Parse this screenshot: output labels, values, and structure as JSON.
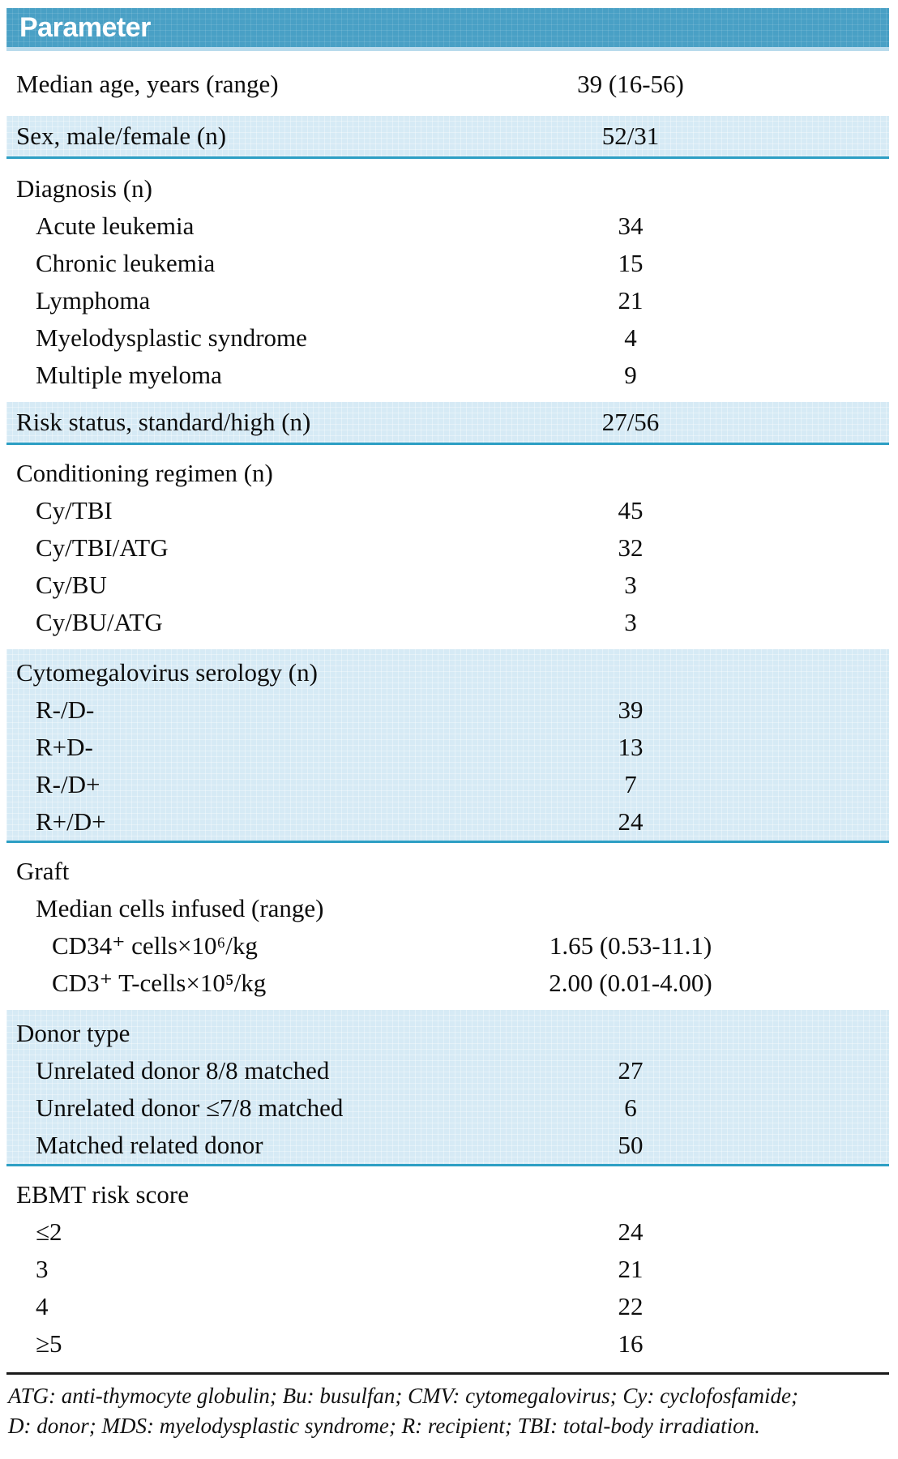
{
  "table": {
    "header": "Parameter",
    "rows": [
      {
        "label": "Median age, years (range)",
        "value": "39 (16-56)"
      },
      {
        "label": "Sex, male/female (n)",
        "value": "52/31"
      },
      {
        "label": "Diagnosis (n)",
        "value": ""
      },
      {
        "label": "Acute leukemia",
        "value": "34"
      },
      {
        "label": "Chronic leukemia",
        "value": "15"
      },
      {
        "label": "Lymphoma",
        "value": "21"
      },
      {
        "label": "Myelodysplastic syndrome",
        "value": "4"
      },
      {
        "label": "Multiple myeloma",
        "value": "9"
      },
      {
        "label": "Risk status, standard/high (n)",
        "value": "27/56"
      },
      {
        "label": "Conditioning regimen (n)",
        "value": ""
      },
      {
        "label": "Cy/TBI",
        "value": "45"
      },
      {
        "label": "Cy/TBI/ATG",
        "value": "32"
      },
      {
        "label": "Cy/BU",
        "value": "3"
      },
      {
        "label": "Cy/BU/ATG",
        "value": "3"
      },
      {
        "label": "Cytomegalovirus serology (n)",
        "value": ""
      },
      {
        "label": "R-/D-",
        "value": "39"
      },
      {
        "label": "R+D-",
        "value": "13"
      },
      {
        "label": "R-/D+",
        "value": "7"
      },
      {
        "label": "R+/D+",
        "value": "24"
      },
      {
        "label": "Graft",
        "value": ""
      },
      {
        "label": "Median cells infused (range)",
        "value": ""
      },
      {
        "label": "CD34⁺ cells×10⁶/kg",
        "value": "1.65 (0.53-11.1)"
      },
      {
        "label": "CD3⁺ T-cells×10⁵/kg",
        "value": "2.00 (0.01-4.00)"
      },
      {
        "label": "Donor type",
        "value": ""
      },
      {
        "label": "Unrelated donor 8/8 matched",
        "value": "27"
      },
      {
        "label": "Unrelated donor ≤7/8 matched",
        "value": "6"
      },
      {
        "label": "Matched related donor",
        "value": "50"
      },
      {
        "label": "EBMT risk score",
        "value": ""
      },
      {
        "label": "≤2",
        "value": "24"
      },
      {
        "label": "3",
        "value": "21"
      },
      {
        "label": "4",
        "value": "22"
      },
      {
        "label": "≥5",
        "value": "16"
      }
    ],
    "footnote_line1": "ATG: anti-thymocyte globulin; Bu: busulfan;  CMV: cytomegalovirus; Cy: cyclofosfamide;",
    "footnote_line2": "D: donor; MDS: myelodysplastic syndrome; R: recipient; TBI: total-body irradiation."
  },
  "colors": {
    "header_bg": "#49a0c5",
    "band_bg": "#d6eaf5",
    "band_border": "#2d9fc4"
  }
}
